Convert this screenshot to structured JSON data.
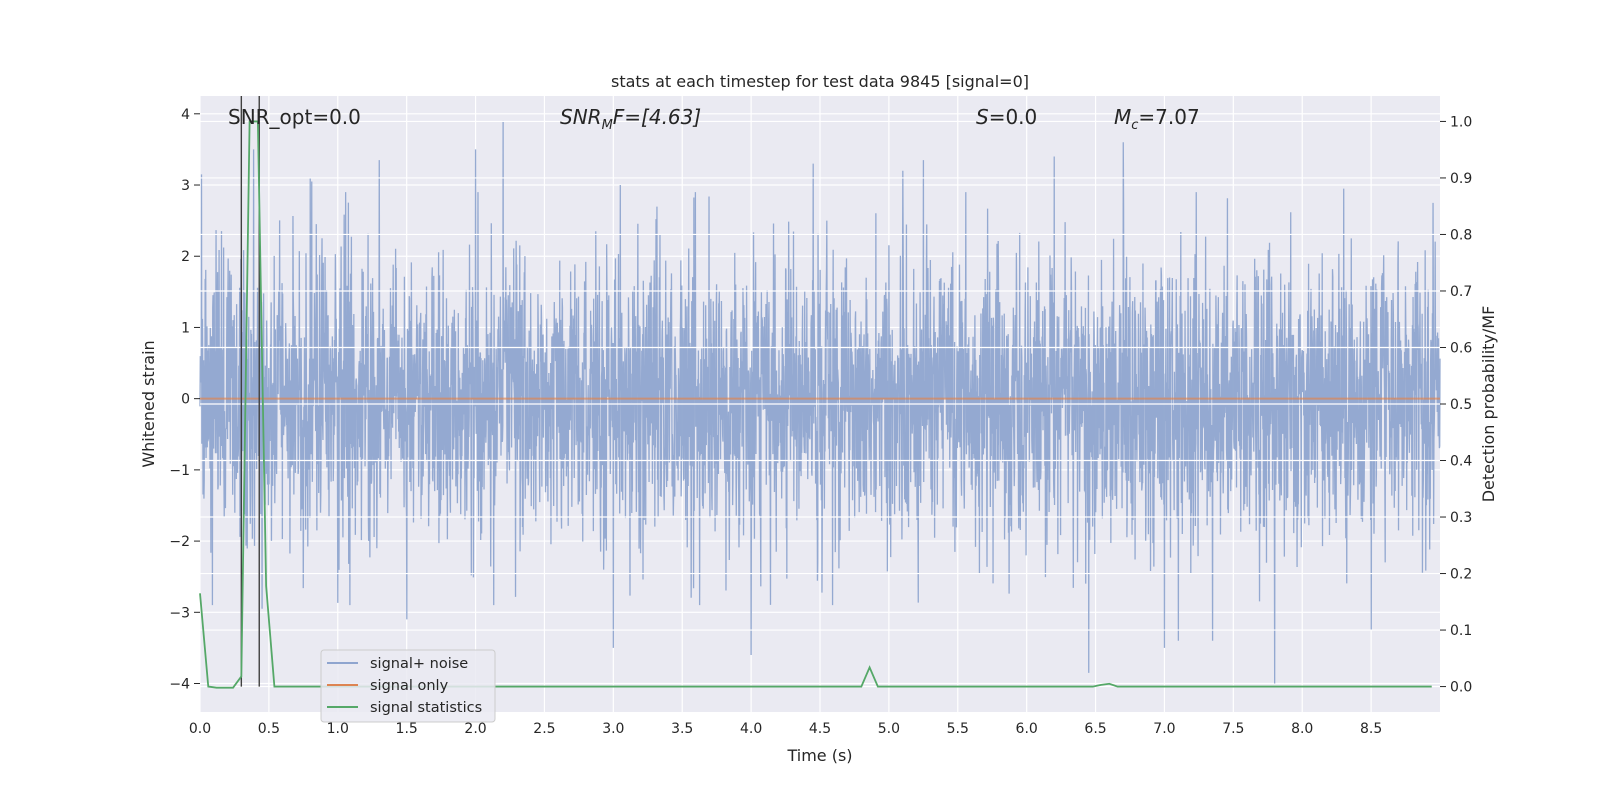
{
  "chart_data": {
    "type": "line",
    "title": "stats at each timestep for test data 9845 [signal=0]",
    "xlabel": "Time (s)",
    "ylabel": "Whitened strain",
    "ylabel_right": "Detection probability/MF",
    "xlim": [
      0.0,
      9.0
    ],
    "ylim": [
      -4.4,
      4.25
    ],
    "ylim_right": [
      -0.045,
      1.045
    ],
    "xticks": [
      0.0,
      0.5,
      1.0,
      1.5,
      2.0,
      2.5,
      3.0,
      3.5,
      4.0,
      4.5,
      5.0,
      5.5,
      6.0,
      6.5,
      7.0,
      7.5,
      8.0,
      8.5
    ],
    "xtick_labels": [
      "0.0",
      "0.5",
      "1.0",
      "1.5",
      "2.0",
      "2.5",
      "3.0",
      "3.5",
      "4.0",
      "4.5",
      "5.0",
      "5.5",
      "6.0",
      "6.5",
      "7.0",
      "7.5",
      "8.0",
      "8.5"
    ],
    "yticks": [
      -4,
      -3,
      -2,
      -1,
      0,
      1,
      2,
      3,
      4
    ],
    "ytick_labels": [
      "−4",
      "−3",
      "−2",
      "−1",
      "0",
      "1",
      "2",
      "3",
      "4"
    ],
    "yticks_right": [
      0.0,
      0.1,
      0.2,
      0.3,
      0.4,
      0.5,
      0.6,
      0.7,
      0.8,
      0.9,
      1.0
    ],
    "ytick_labels_right": [
      "0.0",
      "0.1",
      "0.2",
      "0.3",
      "0.4",
      "0.5",
      "0.6",
      "0.7",
      "0.8",
      "0.9",
      "1.0"
    ],
    "grid": true,
    "legend_position": "lower-left",
    "annotations": {
      "snr_opt": "SNR_opt=0.0",
      "snr_mf_prefix": "SNR",
      "snr_mf_sub": "M",
      "snr_mf_suffix": "F=[4.63]",
      "s_prefix": "S",
      "s_suffix": "=0.0",
      "mc_prefix": "M",
      "mc_sub": "c",
      "mc_suffix": "=7.07"
    },
    "vertical_lines_x": [
      0.3,
      0.43
    ],
    "series": [
      {
        "name": "signal+ noise",
        "color": "#8fa5cf",
        "description_values": "whitened noise, approx gaussian, peaks between -4.0 and 3.9",
        "noise_seed": 9845,
        "n_points": 4096,
        "sigma": 1.0,
        "spikes": [
          {
            "x": 0.01,
            "y": 3.15
          },
          {
            "x": 0.39,
            "y": 3.5
          },
          {
            "x": 0.45,
            "y": -2.95
          },
          {
            "x": 0.8,
            "y": 3.1
          },
          {
            "x": 0.81,
            "y": 3.05
          },
          {
            "x": 1.3,
            "y": 3.35
          },
          {
            "x": 1.5,
            "y": -3.1
          },
          {
            "x": 2.0,
            "y": 3.5
          },
          {
            "x": 2.2,
            "y": 3.9
          },
          {
            "x": 3.0,
            "y": -3.5
          },
          {
            "x": 3.05,
            "y": 3.0
          },
          {
            "x": 4.0,
            "y": -3.6
          },
          {
            "x": 4.45,
            "y": 3.3
          },
          {
            "x": 4.55,
            "y": 2.5
          },
          {
            "x": 5.1,
            "y": 3.2
          },
          {
            "x": 5.25,
            "y": 3.35
          },
          {
            "x": 6.2,
            "y": 3.4
          },
          {
            "x": 6.45,
            "y": -3.85
          },
          {
            "x": 6.7,
            "y": 3.6
          },
          {
            "x": 7.0,
            "y": -3.5
          },
          {
            "x": 7.1,
            "y": -3.4
          },
          {
            "x": 7.35,
            "y": -3.4
          },
          {
            "x": 7.8,
            "y": -4.0
          },
          {
            "x": 8.3,
            "y": 2.95
          },
          {
            "x": 8.5,
            "y": -3.25
          },
          {
            "x": 8.95,
            "y": 2.75
          }
        ]
      },
      {
        "name": "signal only",
        "color": "#dd8452",
        "x": [
          0.0,
          9.0
        ],
        "y": [
          0.0,
          0.0
        ]
      },
      {
        "name": "signal statistics",
        "color": "#55a868",
        "axis": "right",
        "x": [
          0.0,
          0.06,
          0.12,
          0.18,
          0.24,
          0.3,
          0.36,
          0.42,
          0.48,
          0.54,
          0.6,
          0.66,
          0.72,
          0.78,
          0.84,
          0.9,
          0.96,
          1.02,
          1.08,
          1.14,
          1.2,
          1.26,
          1.32,
          1.38,
          1.44,
          1.5,
          1.56,
          1.62,
          1.68,
          1.74,
          1.8,
          1.86,
          1.92,
          1.98,
          2.04,
          2.1,
          2.16,
          2.22,
          2.28,
          2.34,
          2.4,
          2.46,
          2.52,
          2.58,
          2.64,
          2.7,
          2.76,
          2.82,
          2.88,
          2.94,
          3.0,
          3.06,
          3.12,
          3.18,
          3.24,
          3.3,
          3.36,
          3.42,
          3.48,
          3.54,
          3.6,
          3.66,
          3.72,
          3.78,
          3.84,
          3.9,
          3.96,
          4.02,
          4.08,
          4.14,
          4.2,
          4.26,
          4.32,
          4.38,
          4.44,
          4.5,
          4.56,
          4.62,
          4.68,
          4.74,
          4.8,
          4.86,
          4.92,
          4.98,
          5.04,
          5.1,
          5.16,
          5.22,
          5.28,
          5.34,
          5.4,
          5.46,
          5.52,
          5.58,
          5.64,
          5.7,
          5.76,
          5.82,
          5.88,
          5.94,
          6.0,
          6.06,
          6.12,
          6.18,
          6.24,
          6.3,
          6.36,
          6.42,
          6.48,
          6.54,
          6.6,
          6.66,
          6.72,
          6.78,
          6.84,
          6.9,
          6.96,
          7.02,
          7.08,
          7.14,
          7.2,
          7.26,
          7.32,
          7.38,
          7.44,
          7.5,
          7.56,
          7.62,
          7.68,
          7.74,
          7.8,
          7.86,
          7.92,
          7.98,
          8.04,
          8.1,
          8.16,
          8.22,
          8.28,
          8.34,
          8.4,
          8.46,
          8.52,
          8.58,
          8.64,
          8.7,
          8.76,
          8.82,
          8.88,
          8.94
        ],
        "y": [
          0.165,
          0.0,
          -0.002,
          -0.002,
          -0.002,
          0.018,
          1.0,
          1.0,
          0.178,
          0.0,
          0.0,
          0.0,
          0.0,
          0.0,
          0.0,
          0.0,
          0.0,
          0.0,
          0.0,
          0.0,
          0.0,
          0.0,
          0.0,
          0.0,
          0.0,
          0.0,
          0.0,
          0.0,
          0.0,
          0.0,
          0.0,
          0.0,
          0.0,
          0.0,
          0.0,
          0.0,
          0.0,
          0.0,
          0.0,
          0.0,
          0.0,
          0.0,
          0.0,
          0.0,
          0.0,
          0.0,
          0.0,
          0.0,
          0.0,
          0.0,
          0.0,
          0.0,
          0.0,
          0.0,
          0.0,
          0.0,
          0.0,
          0.0,
          0.0,
          0.0,
          0.0,
          0.0,
          0.0,
          0.0,
          0.0,
          0.0,
          0.0,
          0.0,
          0.0,
          0.0,
          0.0,
          0.0,
          0.0,
          0.0,
          0.0,
          0.0,
          0.0,
          0.0,
          0.0,
          0.0,
          0.0,
          0.034,
          0.0,
          0.0,
          0.0,
          0.0,
          0.0,
          0.0,
          0.0,
          0.0,
          0.0,
          0.0,
          0.0,
          0.0,
          0.0,
          0.0,
          0.0,
          0.0,
          0.0,
          0.0,
          0.0,
          0.0,
          0.0,
          0.0,
          0.0,
          0.0,
          0.0,
          0.0,
          0.0,
          0.003,
          0.005,
          0.0,
          0.0,
          0.0,
          0.0,
          0.0,
          0.0,
          0.0,
          0.0,
          0.0,
          0.0,
          0.0,
          0.0,
          0.0,
          0.0,
          0.0,
          0.0,
          0.0,
          0.0,
          0.0,
          0.0,
          0.0,
          0.0,
          0.0,
          0.0,
          0.0,
          0.0,
          0.0,
          0.0,
          0.0,
          0.0,
          0.0,
          0.0,
          0.0,
          0.0,
          0.0,
          0.0,
          0.0,
          0.0,
          0.0
        ]
      }
    ],
    "colors": {
      "axes_bg": "#eaeaf2",
      "grid": "#ffffff",
      "vline": "#404040"
    }
  }
}
